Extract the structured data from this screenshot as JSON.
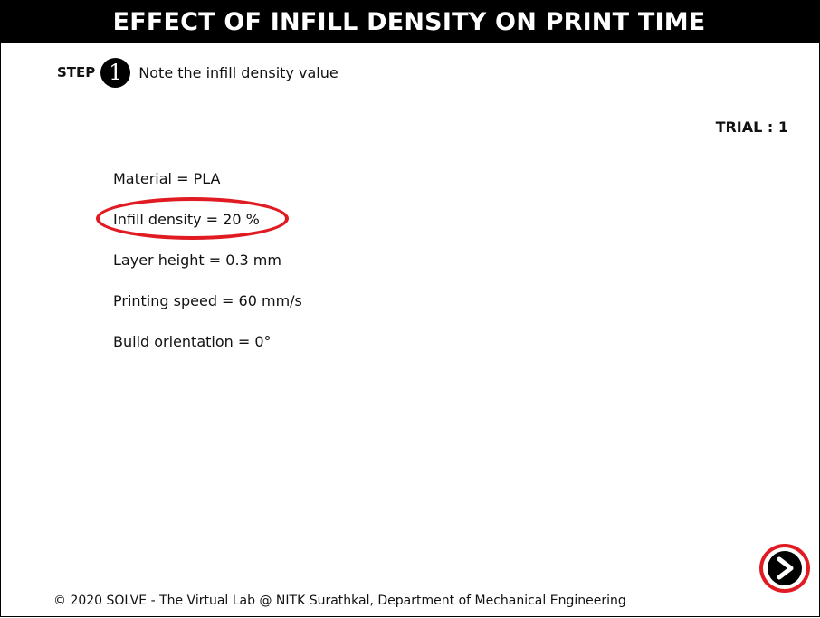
{
  "header": {
    "title": "EFFECT OF INFILL DENSITY ON PRINT TIME"
  },
  "step": {
    "label": "STEP",
    "number": "1",
    "instruction": "Note the infill density value"
  },
  "trial": {
    "text": "TRIAL : 1"
  },
  "parameters": [
    {
      "text": "Material = PLA",
      "highlighted": false
    },
    {
      "text": "Infill density = 20 %",
      "highlighted": true
    },
    {
      "text": "Layer height = 0.3 mm",
      "highlighted": false
    },
    {
      "text": "Printing speed = 60 mm/s",
      "highlighted": false
    },
    {
      "text": "Build orientation = 0°",
      "highlighted": false
    }
  ],
  "navigation": {
    "next_icon": "right-arrow-circle-icon"
  },
  "footer": {
    "text": "© 2020 SOLVE - The Virtual Lab @ NITK Surathkal, Department of Mechanical Engineering"
  },
  "colors": {
    "header_background": "#000000",
    "header_text": "#ffffff",
    "highlight": "#e11b22"
  }
}
